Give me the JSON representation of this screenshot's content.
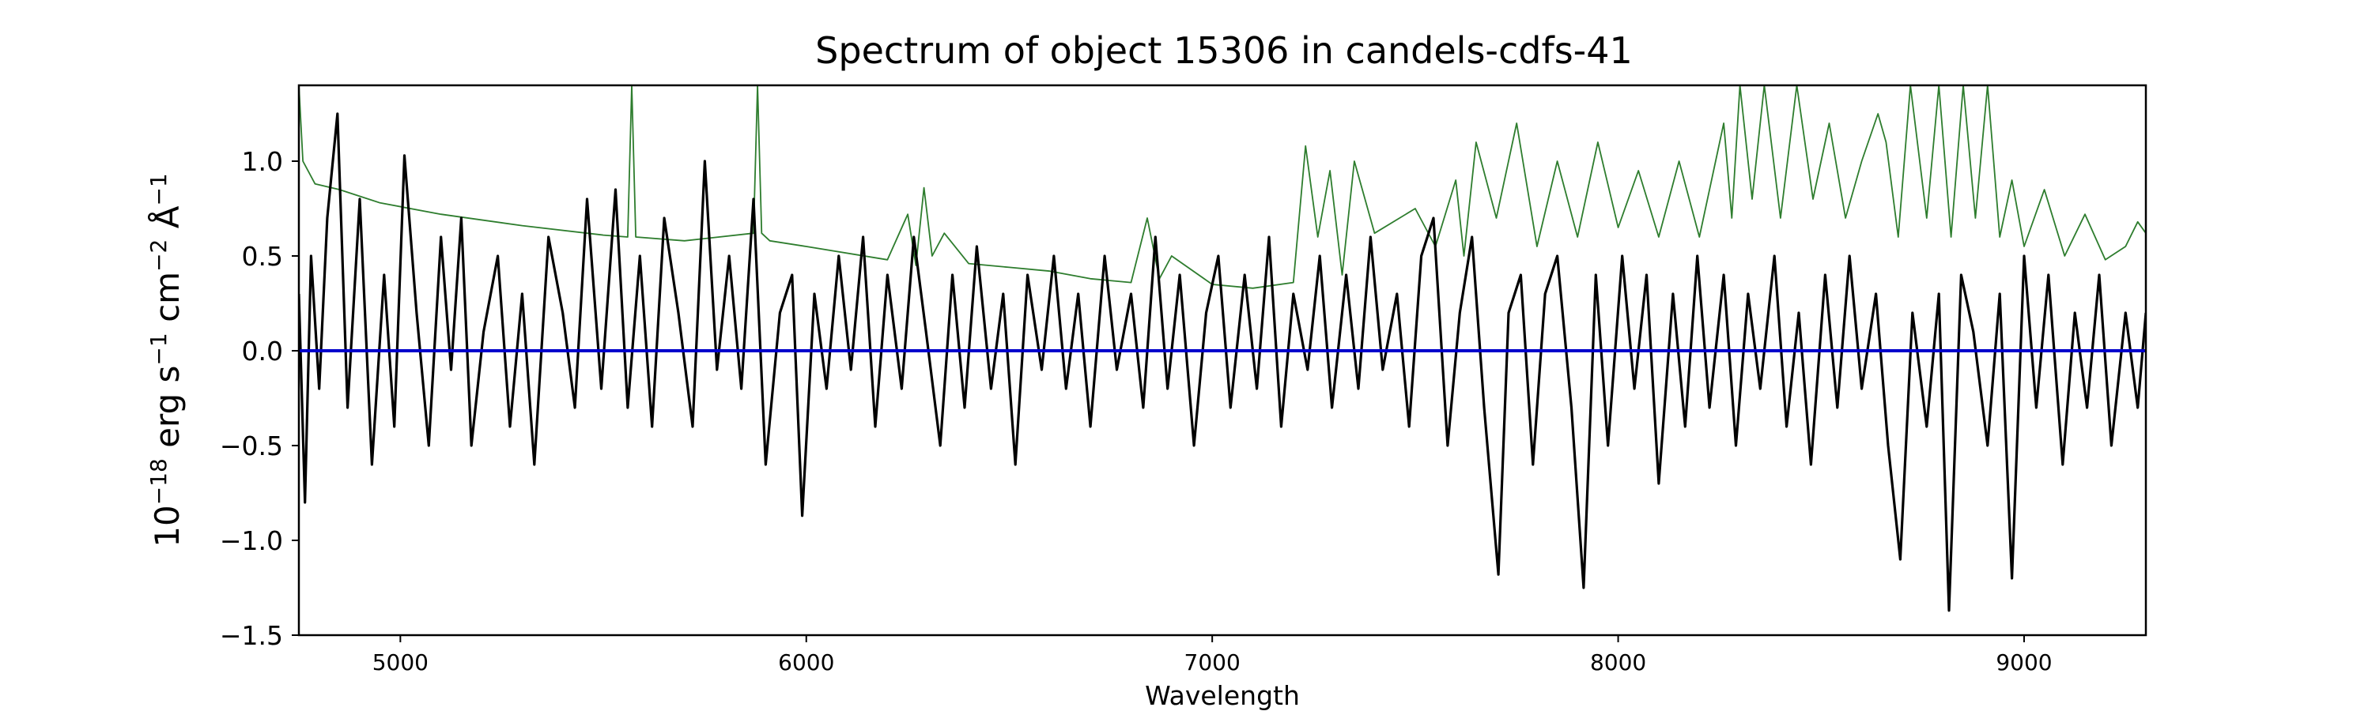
{
  "chart_data": {
    "type": "line",
    "title": "Spectrum of object 15306 in candels-cdfs-41",
    "xlabel": "Wavelength",
    "ylabel": {
      "base": "10",
      "exp1": "−18",
      "part1": " erg s",
      "exp2": "−1",
      "part2": " cm",
      "exp3": "−2",
      "part3": " Å",
      "exp4": "−1"
    },
    "xlim": [
      4750,
      9300
    ],
    "ylim": [
      -1.5,
      1.4
    ],
    "x_ticks": [
      5000,
      6000,
      7000,
      8000,
      9000
    ],
    "x_tick_labels": [
      "5000",
      "6000",
      "7000",
      "8000",
      "9000"
    ],
    "y_ticks": [
      -1.5,
      -1.0,
      -0.5,
      0.0,
      0.5,
      1.0
    ],
    "y_tick_labels": [
      "−1.5",
      "−1.0",
      "−0.5",
      "0.0",
      "0.5",
      "1.0"
    ],
    "grid": false,
    "series": [
      {
        "role": "flux",
        "color": "#000000",
        "x": [
          4750,
          4765,
          4780,
          4800,
          4820,
          4845,
          4870,
          4900,
          4930,
          4960,
          4985,
          5010,
          5040,
          5070,
          5100,
          5125,
          5150,
          5175,
          5205,
          5240,
          5270,
          5300,
          5330,
          5365,
          5400,
          5430,
          5460,
          5495,
          5530,
          5560,
          5590,
          5620,
          5650,
          5685,
          5720,
          5750,
          5780,
          5810,
          5840,
          5870,
          5900,
          5935,
          5965,
          5990,
          6020,
          6050,
          6080,
          6110,
          6140,
          6170,
          6200,
          6235,
          6265,
          6295,
          6330,
          6360,
          6390,
          6420,
          6455,
          6485,
          6515,
          6545,
          6580,
          6610,
          6640,
          6670,
          6700,
          6735,
          6765,
          6800,
          6830,
          6860,
          6890,
          6920,
          6955,
          6985,
          7015,
          7045,
          7080,
          7110,
          7140,
          7170,
          7200,
          7235,
          7265,
          7295,
          7330,
          7360,
          7390,
          7420,
          7455,
          7485,
          7515,
          7545,
          7580,
          7610,
          7640,
          7670,
          7705,
          7730,
          7760,
          7790,
          7820,
          7850,
          7885,
          7915,
          7945,
          7975,
          8010,
          8040,
          8070,
          8100,
          8135,
          8165,
          8195,
          8225,
          8260,
          8290,
          8320,
          8350,
          8385,
          8415,
          8445,
          8475,
          8510,
          8540,
          8570,
          8600,
          8635,
          8665,
          8695,
          8725,
          8760,
          8790,
          8815,
          8845,
          8875,
          8910,
          8940,
          8970,
          9000,
          9030,
          9060,
          9095,
          9125,
          9155,
          9185,
          9215,
          9250,
          9280,
          9300
        ],
        "y": [
          0.3,
          -0.8,
          0.5,
          -0.2,
          0.7,
          1.25,
          -0.3,
          0.8,
          -0.6,
          0.4,
          -0.4,
          1.03,
          0.2,
          -0.5,
          0.6,
          -0.1,
          0.7,
          -0.5,
          0.1,
          0.5,
          -0.4,
          0.3,
          -0.6,
          0.6,
          0.2,
          -0.3,
          0.8,
          -0.2,
          0.85,
          -0.3,
          0.5,
          -0.4,
          0.7,
          0.2,
          -0.4,
          1.0,
          -0.1,
          0.5,
          -0.2,
          0.8,
          -0.6,
          0.2,
          0.4,
          -0.87,
          0.3,
          -0.2,
          0.5,
          -0.1,
          0.6,
          -0.4,
          0.4,
          -0.2,
          0.6,
          0.1,
          -0.5,
          0.4,
          -0.3,
          0.55,
          -0.2,
          0.3,
          -0.6,
          0.4,
          -0.1,
          0.5,
          -0.2,
          0.3,
          -0.4,
          0.5,
          -0.1,
          0.3,
          -0.3,
          0.6,
          -0.2,
          0.4,
          -0.5,
          0.2,
          0.5,
          -0.3,
          0.4,
          -0.2,
          0.6,
          -0.4,
          0.3,
          -0.1,
          0.5,
          -0.3,
          0.4,
          -0.2,
          0.6,
          -0.1,
          0.3,
          -0.4,
          0.5,
          0.7,
          -0.5,
          0.2,
          0.6,
          -0.3,
          -1.18,
          0.2,
          0.4,
          -0.6,
          0.3,
          0.5,
          -0.3,
          -1.25,
          0.4,
          -0.5,
          0.5,
          -0.2,
          0.4,
          -0.7,
          0.3,
          -0.4,
          0.5,
          -0.3,
          0.4,
          -0.5,
          0.3,
          -0.2,
          0.5,
          -0.4,
          0.2,
          -0.6,
          0.4,
          -0.3,
          0.5,
          -0.2,
          0.3,
          -0.5,
          -1.1,
          0.2,
          -0.4,
          0.3,
          -1.37,
          0.4,
          0.1,
          -0.5,
          0.3,
          -1.2,
          0.5,
          -0.3,
          0.4,
          -0.6,
          0.2,
          -0.3,
          0.4,
          -0.5,
          0.2,
          -0.3,
          0.2
        ]
      },
      {
        "role": "error",
        "color": "#2e7d2e",
        "x": [
          4750,
          4760,
          4790,
          4850,
          4950,
          5100,
          5300,
          5500,
          5560,
          5570,
          5580,
          5700,
          5870,
          5880,
          5890,
          5910,
          6000,
          6200,
          6250,
          6270,
          6290,
          6310,
          6340,
          6400,
          6500,
          6600,
          6700,
          6800,
          6840,
          6870,
          6900,
          7000,
          7100,
          7200,
          7230,
          7260,
          7290,
          7320,
          7350,
          7400,
          7500,
          7550,
          7600,
          7620,
          7650,
          7700,
          7750,
          7800,
          7850,
          7900,
          7950,
          8000,
          8050,
          8100,
          8150,
          8200,
          8260,
          8280,
          8300,
          8330,
          8360,
          8400,
          8440,
          8480,
          8520,
          8560,
          8600,
          8640,
          8660,
          8690,
          8720,
          8760,
          8790,
          8820,
          8850,
          8880,
          8910,
          8940,
          8970,
          9000,
          9050,
          9100,
          9150,
          9200,
          9250,
          9280,
          9300
        ],
        "y": [
          1.4,
          1.0,
          0.88,
          0.85,
          0.78,
          0.72,
          0.66,
          0.61,
          0.6,
          1.4,
          0.6,
          0.58,
          0.62,
          1.4,
          0.62,
          0.58,
          0.55,
          0.48,
          0.72,
          0.45,
          0.86,
          0.5,
          0.62,
          0.46,
          0.44,
          0.42,
          0.38,
          0.36,
          0.7,
          0.38,
          0.5,
          0.35,
          0.33,
          0.36,
          1.08,
          0.6,
          0.95,
          0.4,
          1.0,
          0.62,
          0.75,
          0.55,
          0.9,
          0.5,
          1.1,
          0.7,
          1.2,
          0.55,
          1.0,
          0.6,
          1.1,
          0.65,
          0.95,
          0.6,
          1.0,
          0.6,
          1.2,
          0.7,
          1.4,
          0.8,
          1.4,
          0.7,
          1.4,
          0.8,
          1.2,
          0.7,
          1.0,
          1.25,
          1.1,
          0.6,
          1.4,
          0.7,
          1.4,
          0.6,
          1.4,
          0.7,
          1.4,
          0.6,
          0.9,
          0.55,
          0.85,
          0.5,
          0.72,
          0.48,
          0.55,
          0.68,
          0.62
        ]
      },
      {
        "role": "model",
        "color": "#0000cc",
        "x": [
          4750,
          9300
        ],
        "y": [
          0.0,
          0.0
        ]
      }
    ]
  }
}
